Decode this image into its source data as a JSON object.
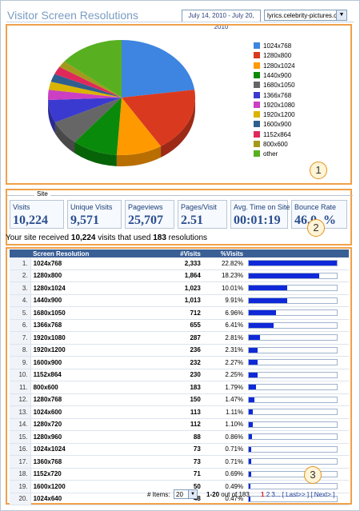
{
  "header": {
    "title": "Visitor Screen Resolutions",
    "date_range": "July 14, 2010 - July 20, 2010",
    "site": "lyrics.celebrity-pictures.ca"
  },
  "badges": [
    "1",
    "2",
    "3"
  ],
  "chart_data": {
    "type": "pie",
    "categories": [
      "1024x768",
      "1280x800",
      "1280x1024",
      "1440x900",
      "1680x1050",
      "1366x768",
      "1920x1080",
      "1920x1200",
      "1600x900",
      "1152x864",
      "800x600",
      "other"
    ],
    "values": [
      22.82,
      18.23,
      10.01,
      9.91,
      6.96,
      6.41,
      2.81,
      2.31,
      2.27,
      2.25,
      1.79,
      14.23
    ],
    "colors": [
      "#3d85e0",
      "#d93a1f",
      "#ff9900",
      "#0a8a0a",
      "#666666",
      "#3a3ad0",
      "#cc3fc2",
      "#d9b400",
      "#2e5f8f",
      "#e0295a",
      "#a39a1c",
      "#58b020"
    ]
  },
  "site_section": {
    "label": "Site",
    "metrics": [
      {
        "label": "Visits",
        "value": "10,224"
      },
      {
        "label": "Unique Visits",
        "value": "9,571"
      },
      {
        "label": "Pageviews",
        "value": "25,707"
      },
      {
        "label": "Pages/Visit",
        "value": "2.51"
      },
      {
        "label": "Avg. Time on Site",
        "value": "00:01:19"
      },
      {
        "label": "Bounce Rate",
        "value": "46.0_%"
      }
    ],
    "summary_pre": "Your site received ",
    "summary_visits": "10,224",
    "summary_mid": " visits that used ",
    "summary_res": "183",
    "summary_post": " resolutions"
  },
  "table": {
    "headers": [
      "Screen Resolution",
      "#Visits",
      "%Visits"
    ],
    "rows": [
      {
        "n": "1.",
        "name": "1024x768",
        "visits": "2,333",
        "pct": "22.82%",
        "frac": 1.0
      },
      {
        "n": "2.",
        "name": "1280x800",
        "visits": "1,864",
        "pct": "18.23%",
        "frac": 0.799
      },
      {
        "n": "3.",
        "name": "1280x1024",
        "visits": "1,023",
        "pct": "10.01%",
        "frac": 0.439
      },
      {
        "n": "4.",
        "name": "1440x900",
        "visits": "1,013",
        "pct": "9.91%",
        "frac": 0.434
      },
      {
        "n": "5.",
        "name": "1680x1050",
        "visits": "712",
        "pct": "6.96%",
        "frac": 0.305
      },
      {
        "n": "6.",
        "name": "1366x768",
        "visits": "655",
        "pct": "6.41%",
        "frac": 0.281
      },
      {
        "n": "7.",
        "name": "1920x1080",
        "visits": "287",
        "pct": "2.81%",
        "frac": 0.123
      },
      {
        "n": "8.",
        "name": "1920x1200",
        "visits": "236",
        "pct": "2.31%",
        "frac": 0.101
      },
      {
        "n": "9.",
        "name": "1600x900",
        "visits": "232",
        "pct": "2.27%",
        "frac": 0.099
      },
      {
        "n": "10.",
        "name": "1152x864",
        "visits": "230",
        "pct": "2.25%",
        "frac": 0.099
      },
      {
        "n": "11.",
        "name": "800x600",
        "visits": "183",
        "pct": "1.79%",
        "frac": 0.078
      },
      {
        "n": "12.",
        "name": "1280x768",
        "visits": "150",
        "pct": "1.47%",
        "frac": 0.064
      },
      {
        "n": "13.",
        "name": "1024x600",
        "visits": "113",
        "pct": "1.11%",
        "frac": 0.048
      },
      {
        "n": "14.",
        "name": "1280x720",
        "visits": "112",
        "pct": "1.10%",
        "frac": 0.048
      },
      {
        "n": "15.",
        "name": "1280x960",
        "visits": "88",
        "pct": "0.86%",
        "frac": 0.038
      },
      {
        "n": "16.",
        "name": "1024x1024",
        "visits": "73",
        "pct": "0.71%",
        "frac": 0.031
      },
      {
        "n": "17.",
        "name": "1360x768",
        "visits": "73",
        "pct": "0.71%",
        "frac": 0.031
      },
      {
        "n": "18.",
        "name": "1152x720",
        "visits": "71",
        "pct": "0.69%",
        "frac": 0.03
      },
      {
        "n": "19.",
        "name": "1600x1200",
        "visits": "50",
        "pct": "0.49%",
        "frac": 0.021
      },
      {
        "n": "20.",
        "name": "1024x640",
        "visits": "48",
        "pct": "0.47%",
        "frac": 0.021
      }
    ]
  },
  "footer": {
    "items_label": "# Items:",
    "items_value": "20",
    "range_bold": "1-20",
    "range_rest": " out of 183",
    "current_page": "1",
    "page2": "2",
    "page3": "3",
    "ellipsis": "...",
    "last_link": "[ Last>> ]",
    "next_link": "[ Next> ]"
  }
}
